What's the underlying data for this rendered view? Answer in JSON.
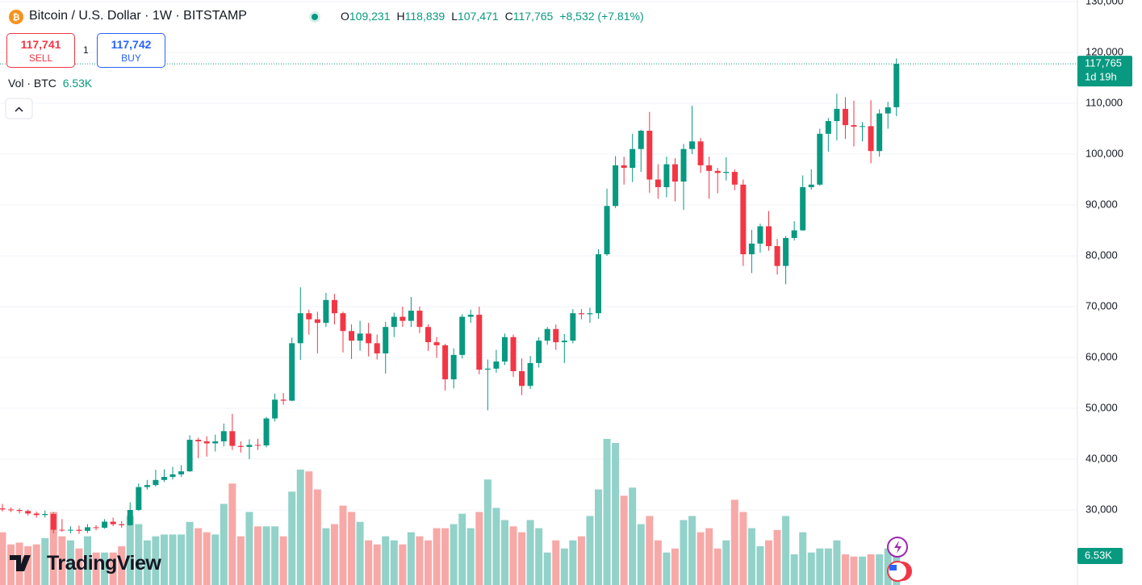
{
  "header": {
    "title": "Bitcoin / U.S. Dollar · 1W · BITSTAMP",
    "ohlc": [
      {
        "label": "O",
        "value": "109,231"
      },
      {
        "label": "H",
        "value": "118,839"
      },
      {
        "label": "L",
        "value": "107,471"
      },
      {
        "label": "C",
        "value": "117,765"
      }
    ],
    "change": "+8,532 (+7.81%)",
    "sell_price": "117,741",
    "sell_label": "SELL",
    "quantity": "1",
    "buy_price": "117,742",
    "buy_label": "BUY",
    "volume_title": "Vol · BTC",
    "volume_value": "6.53K"
  },
  "logo": "TradingView",
  "chart_data": {
    "type": "candlestick",
    "up_color": "#089981",
    "down_color": "#f23645",
    "volume_up_color": "#92d2c9",
    "volume_down_color": "#f7a9a7",
    "ylim": [
      15238,
      130317
    ],
    "yticks": [
      {
        "value": 130000,
        "label": "130,000"
      },
      {
        "value": 120000,
        "label": "120,000"
      },
      {
        "value": 110000,
        "label": "110,000"
      },
      {
        "value": 100000,
        "label": "100,000"
      },
      {
        "value": 90000,
        "label": "90,000"
      },
      {
        "value": 80000,
        "label": "80,000"
      },
      {
        "value": 70000,
        "label": "70,000"
      },
      {
        "value": 60000,
        "label": "60,000"
      },
      {
        "value": 50000,
        "label": "50,000"
      },
      {
        "value": 40000,
        "label": "40,000"
      },
      {
        "value": 30000,
        "label": "30,000"
      }
    ],
    "grid": true,
    "last_price_label": "117,765",
    "countdown": "1d 19h",
    "volume_ylim": [
      0,
      34000
    ],
    "volume_label": "6.53K",
    "open": [
      30300,
      30100,
      30000,
      29800,
      29300,
      29000,
      29200,
      26100,
      26000,
      26100,
      25900,
      26600,
      26500,
      27700,
      27200,
      27000,
      30000,
      34500,
      34900,
      35900,
      36500,
      37000,
      37600,
      43800,
      43500,
      43100,
      43500,
      45500,
      42600,
      42400,
      42800,
      42700,
      48000,
      51700,
      51500,
      62800,
      68700,
      67500,
      66800,
      71300,
      68700,
      65200,
      63300,
      64700,
      62800,
      60800,
      66000,
      68000,
      67200,
      69200,
      66000,
      63000,
      62400,
      55700,
      60500,
      68000,
      68400,
      57600,
      57800,
      59200,
      64000,
      57300,
      54400,
      58900,
      63300,
      65600,
      63000,
      63300,
      68700,
      68500,
      68700,
      80300,
      89800,
      97800,
      97300,
      101000,
      104600,
      95000,
      93500,
      98000,
      94600,
      101000,
      102500,
      97800,
      96700,
      96300,
      96500,
      94000,
      80300,
      82400,
      85800,
      81900,
      78000,
      83500,
      85000,
      93500,
      94000,
      104000,
      106500,
      108900,
      105700,
      105400,
      105500,
      100600,
      108000,
      109231
    ],
    "high": [
      31200,
      30500,
      30300,
      30100,
      29700,
      29900,
      29500,
      28200,
      26800,
      26900,
      27200,
      27000,
      28200,
      28500,
      27800,
      31500,
      35200,
      35900,
      37900,
      38000,
      38500,
      38800,
      44700,
      44200,
      44500,
      44800,
      47000,
      48900,
      43500,
      43900,
      44000,
      48300,
      52900,
      53000,
      63900,
      73800,
      69400,
      69000,
      72700,
      72500,
      69000,
      66500,
      67200,
      66800,
      64500,
      67000,
      68800,
      70000,
      71900,
      70000,
      66500,
      64000,
      62700,
      61800,
      68500,
      69400,
      70000,
      59600,
      61500,
      64700,
      64500,
      59800,
      60300,
      64000,
      66000,
      66500,
      64600,
      69500,
      69500,
      69800,
      81300,
      93200,
      99600,
      99500,
      104000,
      104800,
      108300,
      98000,
      99500,
      99200,
      102000,
      109500,
      103200,
      99500,
      97300,
      99400,
      97000,
      95000,
      85100,
      86300,
      88800,
      83300,
      83900,
      86800,
      95800,
      97000,
      105000,
      107100,
      111900,
      111200,
      110500,
      106300,
      110600,
      108800,
      110300,
      118839
    ],
    "low": [
      29700,
      29600,
      29300,
      28900,
      28500,
      28500,
      25400,
      25700,
      25400,
      25300,
      25500,
      26000,
      26300,
      26800,
      26500,
      26900,
      29800,
      34000,
      34600,
      35500,
      36000,
      36500,
      37500,
      40200,
      40500,
      41500,
      42500,
      41800,
      41300,
      40000,
      41800,
      42300,
      47400,
      50700,
      51400,
      59500,
      64500,
      60800,
      66000,
      66500,
      61000,
      59700,
      61300,
      60200,
      59600,
      56800,
      64000,
      66000,
      66000,
      64800,
      61300,
      59900,
      53500,
      53900,
      59800,
      66800,
      56700,
      49600,
      57000,
      58500,
      56200,
      52600,
      53800,
      58000,
      62500,
      61500,
      58900,
      62800,
      67500,
      66800,
      67600,
      80000,
      89400,
      94000,
      94500,
      96500,
      92400,
      91200,
      91500,
      90700,
      89000,
      100000,
      96300,
      91200,
      92300,
      94800,
      92900,
      78000,
      76600,
      80600,
      81000,
      76300,
      74400,
      83000,
      84900,
      93000,
      93800,
      100500,
      102700,
      103000,
      101500,
      102500,
      98200,
      99500,
      105000,
      107471
    ],
    "close": [
      30100,
      30000,
      29800,
      29300,
      29000,
      29200,
      26100,
      26000,
      26100,
      25900,
      26600,
      26500,
      27700,
      27200,
      27000,
      30000,
      34500,
      34900,
      35900,
      36500,
      37000,
      37600,
      43800,
      43500,
      43100,
      43500,
      45500,
      42600,
      42400,
      42800,
      42700,
      48000,
      51700,
      51500,
      62800,
      68700,
      67500,
      66800,
      71300,
      68700,
      65200,
      63300,
      64700,
      62800,
      60800,
      66000,
      68000,
      67200,
      69200,
      66000,
      63000,
      62400,
      55700,
      60500,
      68000,
      68400,
      57600,
      57800,
      59200,
      64000,
      57300,
      54400,
      58900,
      63300,
      65600,
      63000,
      63300,
      68700,
      68500,
      68700,
      80300,
      89800,
      97800,
      97300,
      101000,
      104600,
      95000,
      93500,
      98000,
      94600,
      101000,
      102500,
      97800,
      96700,
      96300,
      96500,
      94000,
      80300,
      82400,
      85800,
      81900,
      78000,
      83500,
      85000,
      93500,
      94000,
      104000,
      106500,
      108900,
      105700,
      105400,
      105500,
      100600,
      108000,
      109200,
      117765
    ],
    "volume": [
      11700,
      9000,
      9400,
      8600,
      9000,
      10400,
      16200,
      10800,
      9900,
      8100,
      10800,
      7200,
      7200,
      7200,
      8600,
      15300,
      13500,
      9900,
      10800,
      11200,
      11200,
      11200,
      14000,
      12600,
      11700,
      11200,
      18000,
      22500,
      10800,
      16200,
      13000,
      13000,
      13000,
      10800,
      20700,
      25600,
      25200,
      21200,
      12600,
      13500,
      17600,
      16200,
      14000,
      9900,
      9000,
      10800,
      9900,
      9000,
      11700,
      10800,
      9900,
      12600,
      12600,
      13500,
      15800,
      12600,
      16200,
      23400,
      17100,
      14400,
      13000,
      11700,
      14400,
      12600,
      7200,
      9900,
      8100,
      9900,
      10800,
      15300,
      21200,
      32400,
      31500,
      19800,
      21600,
      13500,
      15300,
      9900,
      7200,
      8100,
      14400,
      15300,
      11700,
      12600,
      8100,
      9900,
      18900,
      16200,
      12600,
      8600,
      9900,
      12200,
      15300,
      6800,
      11700,
      7200,
      8100,
      8100,
      9900,
      6800,
      6300,
      6300,
      6800,
      6800,
      8100,
      6530
    ]
  }
}
